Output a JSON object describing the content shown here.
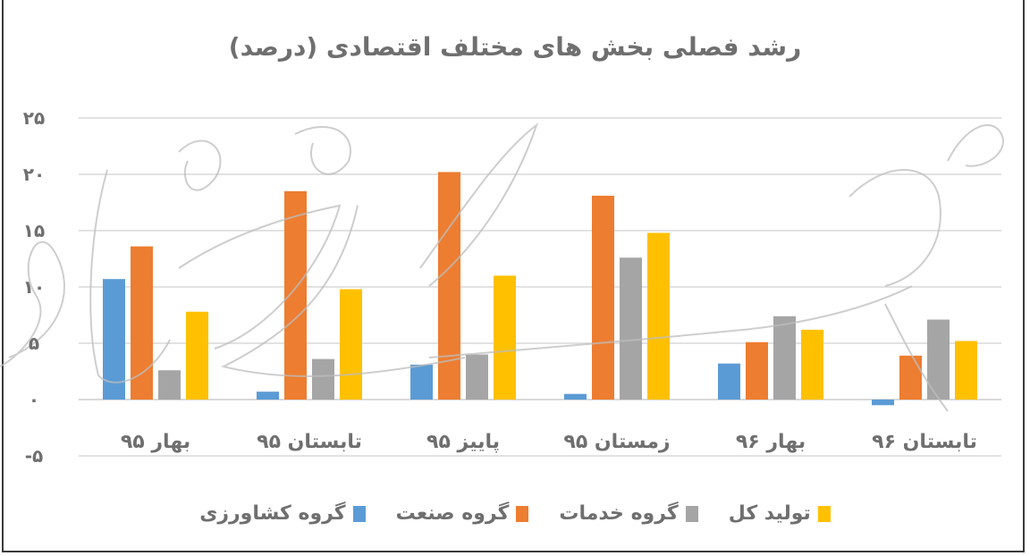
{
  "chart_data": {
    "type": "bar",
    "title": "رشد فصلی بخش های مختلف اقتصادی (درصد)",
    "xlabel": "",
    "ylabel": "",
    "ylim": [
      -5,
      25
    ],
    "yticks": [
      25,
      20,
      15,
      10,
      5,
      0,
      -5
    ],
    "ytick_labels": [
      "۲۵",
      "۲۰",
      "۱۵",
      "۱۰",
      "۵",
      "۰",
      "-۵"
    ],
    "categories": [
      "بهار ۹۵",
      "تابستان ۹۵",
      "پاییز ۹۵",
      "زمستان ۹۵",
      "بهار ۹۶",
      "تابستان ۹۶"
    ],
    "series": [
      {
        "name": "گروه کشاورزی",
        "color": "#5b9bd5",
        "values": [
          10.7,
          0.7,
          3.1,
          0.5,
          3.2,
          -0.5
        ]
      },
      {
        "name": "گروه صنعت",
        "color": "#ed7d31",
        "values": [
          13.6,
          18.5,
          20.2,
          18.1,
          5.1,
          3.9
        ]
      },
      {
        "name": "گروه خدمات",
        "color": "#a5a5a5",
        "values": [
          2.6,
          3.6,
          4.0,
          12.6,
          7.4,
          7.1
        ]
      },
      {
        "name": "تولید کل",
        "color": "#ffc000",
        "values": [
          7.8,
          9.8,
          11.0,
          14.8,
          6.2,
          5.2
        ]
      }
    ],
    "grid": true,
    "legend_position": "bottom"
  },
  "legend_order_rtl": [
    3,
    2,
    1,
    0
  ]
}
